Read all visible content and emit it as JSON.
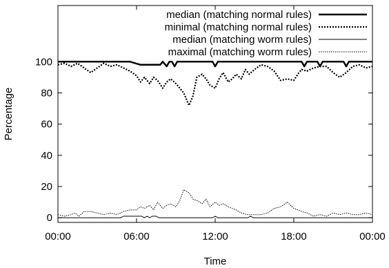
{
  "chart_data": {
    "type": "line",
    "xlabel": "Time",
    "ylabel": "Percentage",
    "xticks": [
      "00:00",
      "06:00",
      "12:00",
      "18:00",
      "00:00"
    ],
    "x_hours": [
      0,
      6,
      12,
      18,
      24
    ],
    "yticks": [
      0,
      20,
      40,
      60,
      80,
      100
    ],
    "xlim": [
      0,
      24
    ],
    "ylim": [
      -3,
      136
    ],
    "grid": false,
    "legend_position": "top-right",
    "series": [
      {
        "name": "median (matching normal rules)",
        "style": "thick-solid",
        "x": [
          0,
          5.5,
          5.9,
          6.3,
          6.8,
          7.0,
          7.2,
          7.4,
          7.6,
          7.8,
          8.0,
          8.3,
          8.5,
          8.7,
          8.9,
          9.1,
          9.3,
          11.8,
          12.0,
          12.2,
          18.6,
          18.8,
          19.0,
          19.8,
          20.0,
          20.2,
          21.8,
          22.0,
          22.2,
          24
        ],
        "y": [
          100,
          100,
          99,
          98,
          98,
          98,
          98,
          98,
          98,
          98,
          100,
          97,
          100,
          100,
          97,
          100,
          100,
          100,
          97,
          100,
          100,
          97,
          100,
          100,
          97,
          100,
          100,
          97,
          100,
          100
        ]
      },
      {
        "name": "minimal (matching normal rules)",
        "style": "thick-dotted",
        "x": [
          0,
          0.5,
          1.0,
          1.5,
          2.0,
          2.5,
          3.0,
          3.5,
          4.0,
          4.5,
          5.0,
          5.5,
          6.0,
          6.3,
          6.6,
          7.0,
          7.3,
          7.6,
          8.0,
          8.3,
          8.6,
          9.0,
          9.3,
          9.6,
          10.0,
          10.3,
          10.6,
          11.0,
          11.3,
          11.6,
          12.0,
          12.3,
          12.6,
          13.0,
          13.3,
          13.6,
          14.0,
          14.3,
          14.6,
          15.0,
          15.5,
          16.0,
          16.5,
          17.0,
          17.5,
          18.0,
          18.3,
          18.6,
          19.0,
          19.5,
          20.0,
          20.5,
          21.0,
          21.5,
          22.0,
          22.5,
          23.0,
          23.5,
          24
        ],
        "y": [
          98,
          99,
          97,
          99,
          96,
          93,
          96,
          99,
          97,
          98,
          96,
          94,
          91,
          87,
          90,
          86,
          90,
          88,
          83,
          87,
          89,
          86,
          83,
          80,
          72,
          78,
          90,
          92,
          89,
          85,
          83,
          89,
          93,
          87,
          89,
          92,
          89,
          95,
          92,
          95,
          98,
          97,
          94,
          88,
          89,
          88,
          92,
          95,
          94,
          96,
          97,
          97,
          93,
          90,
          93,
          97,
          98,
          96,
          97
        ]
      },
      {
        "name": "median (matching worm rules)",
        "style": "thin-solid",
        "x": [
          0,
          4.8,
          5.0,
          5.5,
          6.0,
          6.4,
          6.6,
          6.8,
          7.0,
          7.2,
          7.5,
          7.7,
          7.9,
          11.8,
          12.0,
          12.2,
          14.5,
          14.7,
          14.9,
          24
        ],
        "y": [
          0,
          0,
          1,
          1,
          1,
          1,
          0,
          1,
          0,
          1,
          1,
          0,
          0,
          0,
          1,
          0,
          0,
          1,
          0,
          0
        ]
      },
      {
        "name": "maximal (matching worm rules)",
        "style": "thin-dotted",
        "x": [
          0,
          0.5,
          1.0,
          1.3,
          1.6,
          2.0,
          2.5,
          3.0,
          3.5,
          4.0,
          4.5,
          5.0,
          5.5,
          6.0,
          6.3,
          6.6,
          7.0,
          7.3,
          7.6,
          8.0,
          8.3,
          8.6,
          9.0,
          9.3,
          9.6,
          10.0,
          10.3,
          10.6,
          11.0,
          11.3,
          11.6,
          12.0,
          12.3,
          12.6,
          13.0,
          13.3,
          13.6,
          14.0,
          14.5,
          15.0,
          15.5,
          16.0,
          16.5,
          17.0,
          17.5,
          18.0,
          18.3,
          18.6,
          19.0,
          19.5,
          20.0,
          20.5,
          21.0,
          21.5,
          22.0,
          22.5,
          23.0,
          23.5,
          24
        ],
        "y": [
          2,
          1,
          2,
          3,
          1,
          4,
          4,
          3,
          2,
          3,
          2,
          4,
          5,
          5,
          7,
          6,
          8,
          5,
          10,
          6,
          8,
          9,
          7,
          11,
          18,
          16,
          12,
          11,
          9,
          12,
          7,
          10,
          8,
          9,
          7,
          6,
          5,
          3,
          2,
          2,
          2,
          3,
          6,
          7,
          10,
          6,
          5,
          4,
          3,
          1,
          2,
          1,
          3,
          2,
          3,
          2,
          2,
          3,
          2
        ]
      }
    ]
  }
}
